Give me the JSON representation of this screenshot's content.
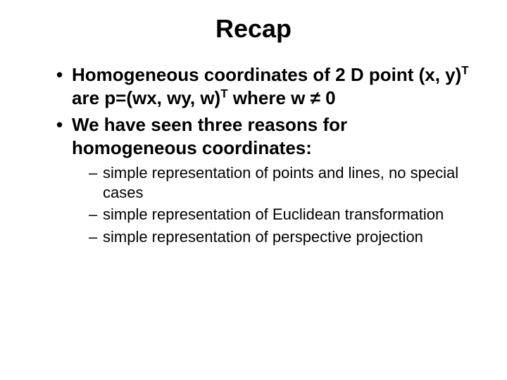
{
  "slide": {
    "title": "Recap",
    "title_fontsize": 36,
    "bullets": [
      {
        "parts": [
          {
            "t": "Homogeneous coordinates of 2 D point (x, y)"
          },
          {
            "t": "T",
            "sup": true
          },
          {
            "t": " are p=(wx, wy, w)"
          },
          {
            "t": "T",
            "sup": true
          },
          {
            "t": "  where w ≠ 0"
          }
        ]
      },
      {
        "parts": [
          {
            "t": "We have seen three reasons for homogeneous coordinates:"
          }
        ],
        "sub": [
          "simple representation of points and lines, no special cases",
          "simple representation of Euclidean transformation",
          "simple representation of perspective projection"
        ]
      }
    ],
    "level1_fontsize": 26,
    "level2_fontsize": 22,
    "line_height": 1.25,
    "background_color": "#ffffff",
    "text_color": "#000000"
  }
}
